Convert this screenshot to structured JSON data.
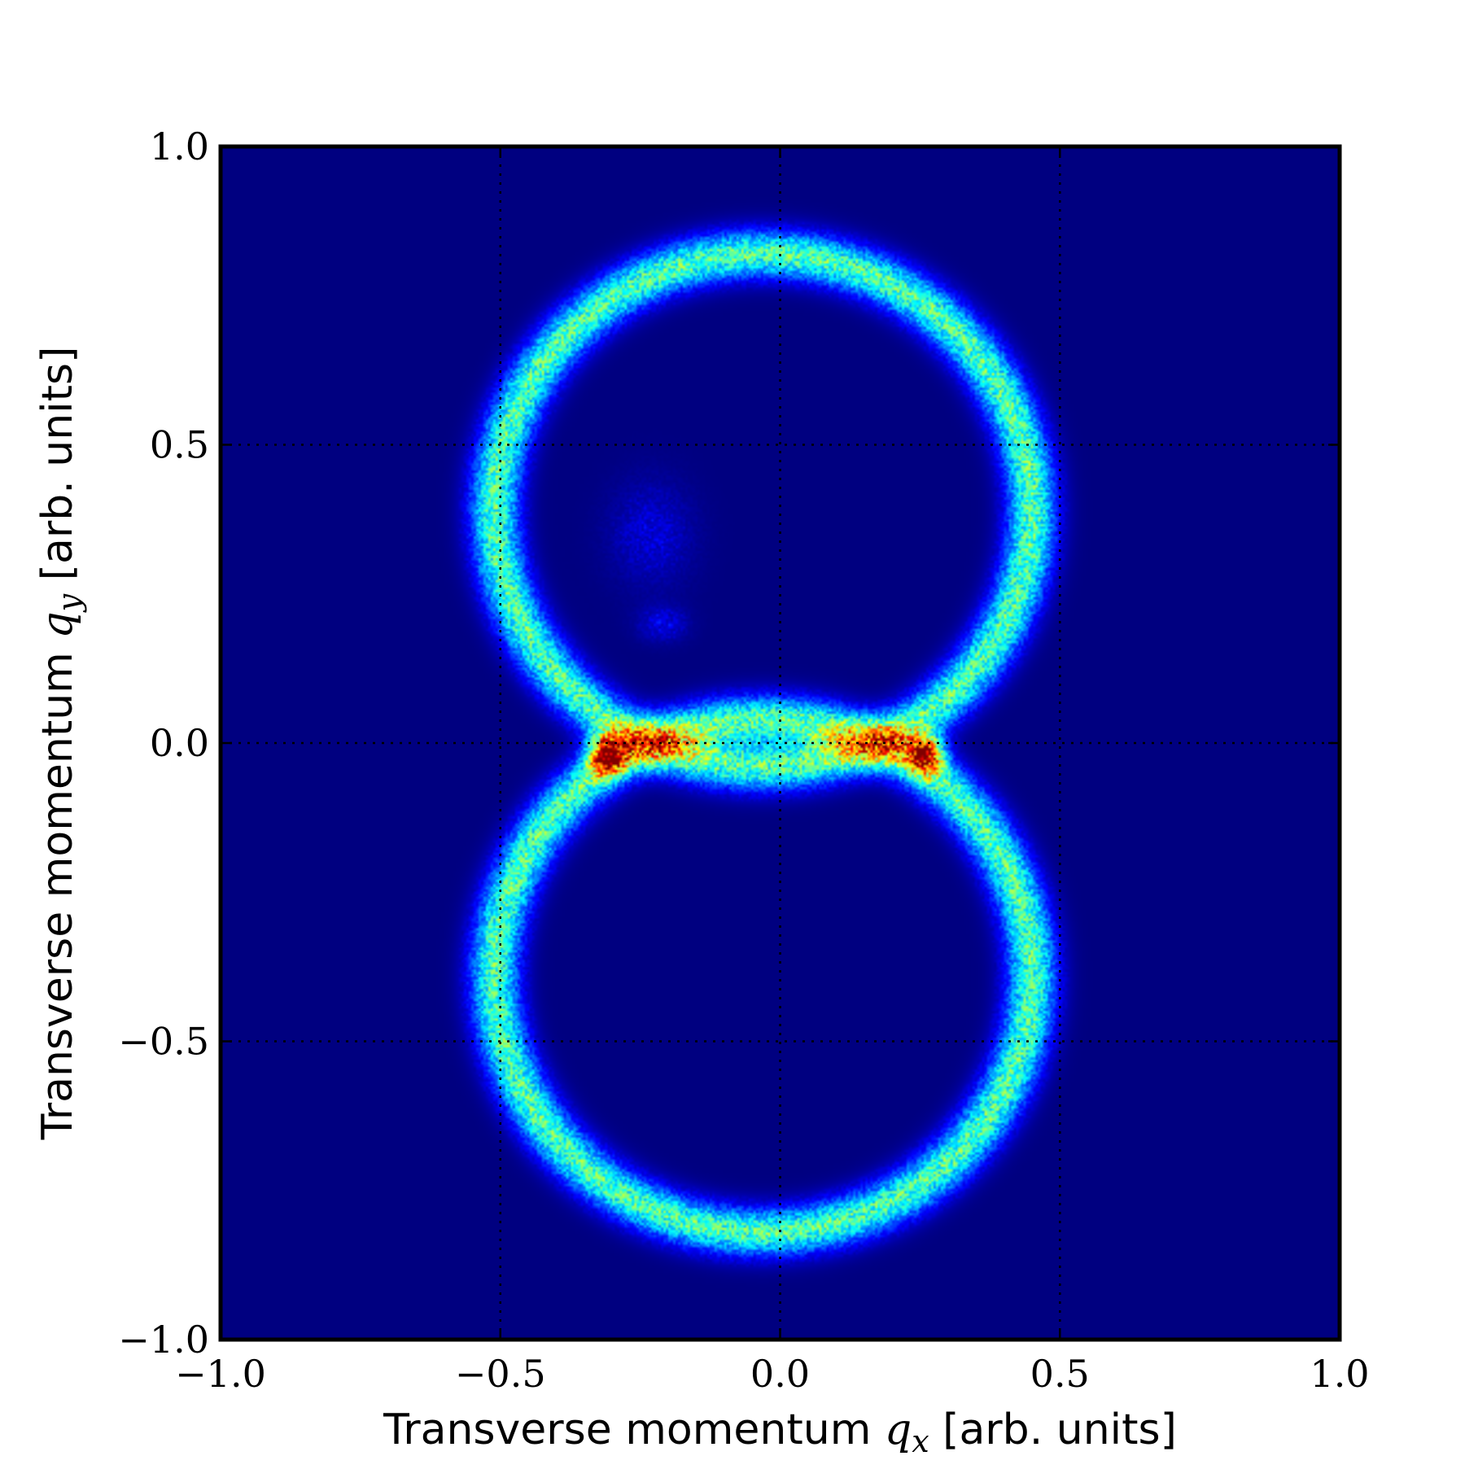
{
  "chart_data": {
    "type": "heatmap",
    "title": "",
    "xlabel": {
      "prefix": "Transverse momentum ",
      "symbol": "q",
      "subscript": "x",
      "suffix": " [arb. units]"
    },
    "ylabel": {
      "prefix": "Transverse momentum ",
      "symbol": "q",
      "subscript": "y",
      "suffix": " [arb. units]"
    },
    "xlim": [
      -1.0,
      1.0
    ],
    "ylim": [
      -1.0,
      1.0
    ],
    "x_ticks": [
      -1.0,
      -0.5,
      0.0,
      0.5,
      1.0
    ],
    "y_ticks": [
      -1.0,
      -0.5,
      0.0,
      0.5,
      1.0
    ],
    "x_tick_labels": [
      "−1.0",
      "−0.5",
      "0.0",
      "0.5",
      "1.0"
    ],
    "y_tick_labels": [
      "−1.0",
      "−0.5",
      "0.0",
      "0.5",
      "1.0"
    ],
    "grid": true,
    "grid_style": "dotted",
    "colormap": "jet",
    "background_color": "#00007f",
    "rings": [
      {
        "name": "upper",
        "center": [
          -0.03,
          0.39
        ],
        "radii": [
          0.48,
          0.43
        ],
        "intensity": 0.45
      },
      {
        "name": "lower",
        "center": [
          -0.03,
          -0.39
        ],
        "radii": [
          0.48,
          0.43
        ],
        "intensity": 0.45
      }
    ],
    "hotspots": [
      {
        "center": [
          -0.31,
          -0.02
        ],
        "intensity": 1.0
      },
      {
        "center": [
          0.26,
          -0.02
        ],
        "intensity": 0.9
      }
    ],
    "faint_features": [
      {
        "center": [
          -0.23,
          0.35
        ],
        "radii": [
          0.1,
          0.12
        ],
        "intensity": 0.12
      },
      {
        "center": [
          -0.21,
          0.2
        ],
        "radii": [
          0.06,
          0.04
        ],
        "intensity": 0.14
      }
    ]
  }
}
